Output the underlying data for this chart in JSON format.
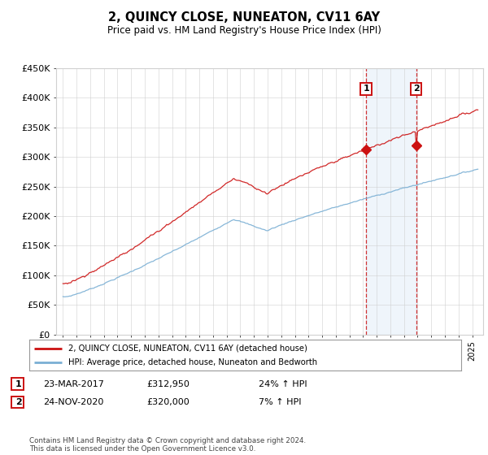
{
  "title": "2, QUINCY CLOSE, NUNEATON, CV11 6AY",
  "subtitle": "Price paid vs. HM Land Registry's House Price Index (HPI)",
  "ylabel_ticks": [
    "£0",
    "£50K",
    "£100K",
    "£150K",
    "£200K",
    "£250K",
    "£300K",
    "£350K",
    "£400K",
    "£450K"
  ],
  "ylim": [
    0,
    450000
  ],
  "marker1_year": 2017.22,
  "marker2_year": 2020.9,
  "sale1_price": 312950,
  "sale2_price": 320000,
  "sale1_date": "23-MAR-2017",
  "sale2_date": "24-NOV-2020",
  "sale1_price_str": "£312,950",
  "sale2_price_str": "£320,000",
  "sale1_hpi": "24% ↑ HPI",
  "sale2_hpi": "7% ↑ HPI",
  "legend_line1": "2, QUINCY CLOSE, NUNEATON, CV11 6AY (detached house)",
  "legend_line2": "HPI: Average price, detached house, Nuneaton and Bedworth",
  "footnote": "Contains HM Land Registry data © Crown copyright and database right 2024.\nThis data is licensed under the Open Government Licence v3.0.",
  "hpi_color": "#7aafd4",
  "price_color": "#cc1111",
  "bg_color": "#ffffff",
  "grid_color": "#d0d0d0",
  "highlight_color": "#ddeeff"
}
